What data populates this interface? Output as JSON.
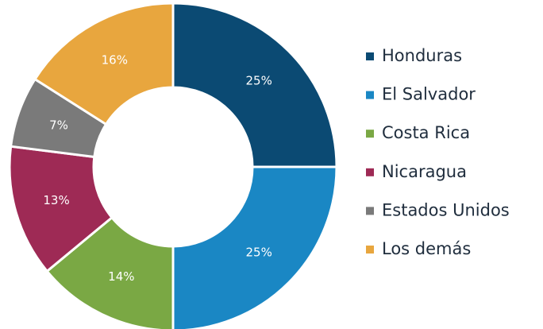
{
  "chart_data": {
    "type": "pie",
    "donut": true,
    "categories": [
      "Honduras",
      "El Salvador",
      "Costa Rica",
      "Nicaragua",
      "Estados Unidos",
      "Los demás"
    ],
    "values": [
      25,
      25,
      14,
      13,
      7,
      16
    ],
    "value_labels": [
      "25%",
      "25%",
      "14%",
      "13%",
      "7%",
      "16%"
    ],
    "colors": [
      "#0b4a73",
      "#1a87c4",
      "#7aa844",
      "#9e2a55",
      "#7a7a7a",
      "#e8a63e"
    ],
    "legend": "right"
  }
}
